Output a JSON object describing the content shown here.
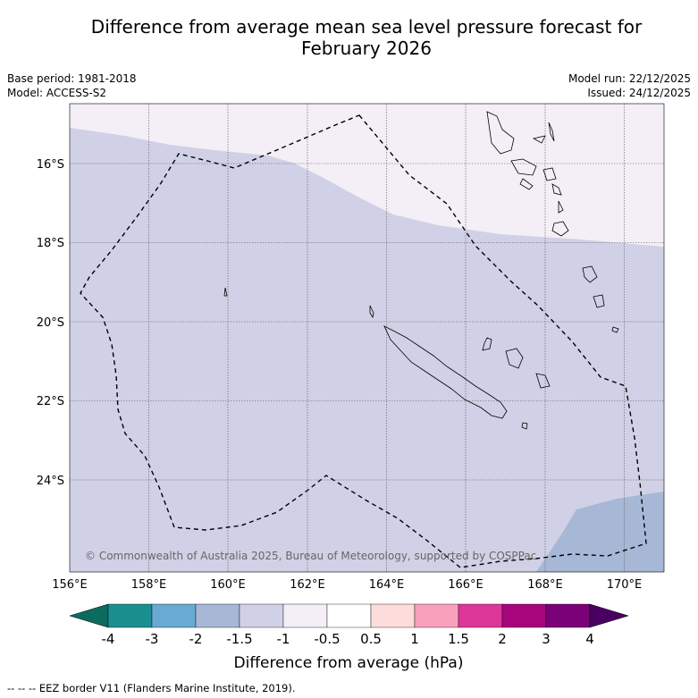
{
  "title": {
    "line1": "Difference from average mean sea level pressure forecast for",
    "line2": "February 2026"
  },
  "meta": {
    "base_period": "Base period: 1981-2018",
    "model": "Model: ACCESS-S2",
    "model_run": "Model run: 22/12/2025",
    "issued": "Issued: 24/12/2025"
  },
  "map": {
    "lat_labels": [
      "16°S",
      "18°S",
      "20°S",
      "22°S",
      "24°S"
    ],
    "lon_labels": [
      "156°E",
      "158°E",
      "160°E",
      "162°E",
      "164°E",
      "166°E",
      "168°E",
      "170°E"
    ],
    "copyright": "© Commonwealth of Australia 2025, Bureau of Meteorology, supported by COSPPac",
    "fill_colors": {
      "neg1_5_neg1": "#d0d1e6",
      "neg1_neg0_5": "#f4eef6",
      "neg2_neg1_5": "#a6b8d6"
    }
  },
  "colorbar": {
    "ticks": [
      "-4",
      "-3",
      "-2",
      "-1.5",
      "-1",
      "-0.5",
      "0.5",
      "1",
      "1.5",
      "2",
      "3",
      "4"
    ],
    "colors": [
      "#1a8f8f",
      "#69aad3",
      "#a6b8d6",
      "#d0d1e6",
      "#f4eef6",
      "#ffffff",
      "#fddcdc",
      "#f9a0bd",
      "#dc3698",
      "#a8057d",
      "#7a0177"
    ],
    "under_color": "#0b6b5e",
    "over_color": "#4a0060",
    "label": "Difference from average (hPa)"
  },
  "footer": "--  --  -- EEZ border V11 (Flanders Marine Institute, 2019)."
}
